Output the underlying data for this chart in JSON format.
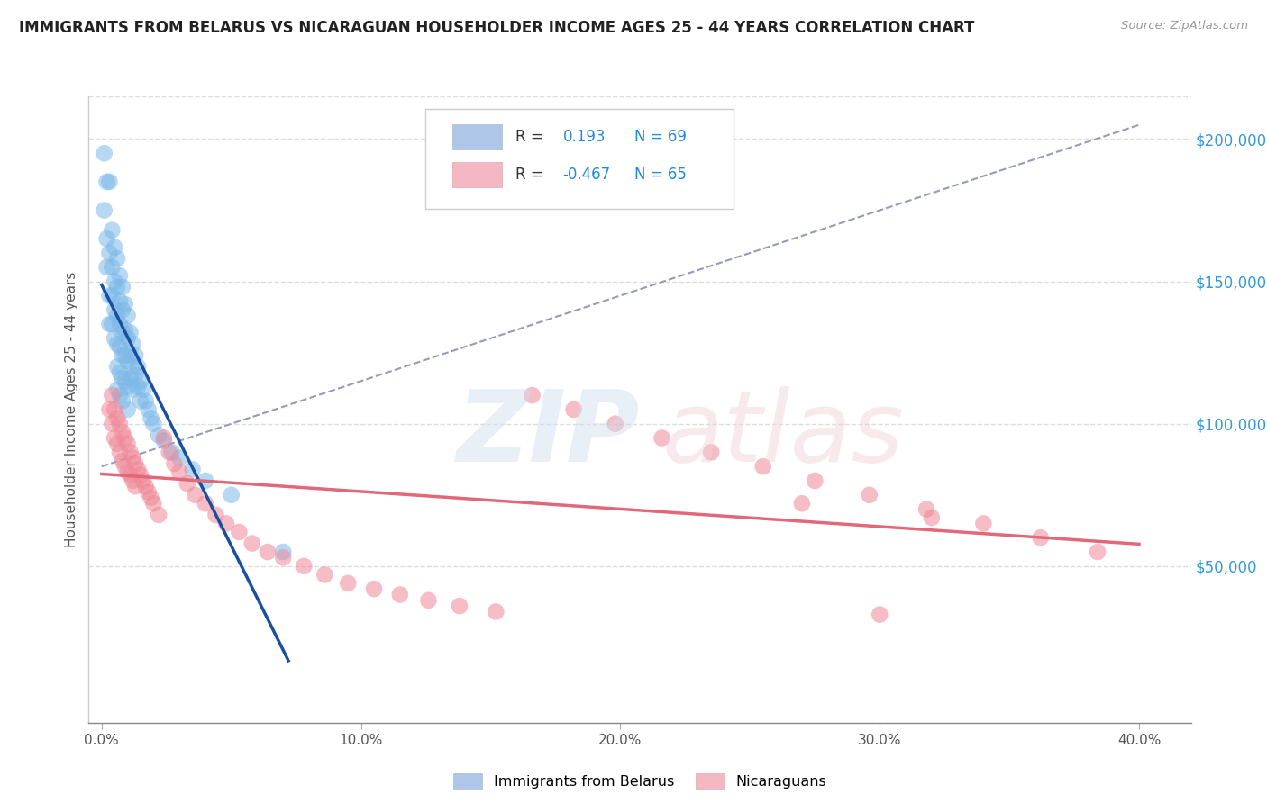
{
  "title": "IMMIGRANTS FROM BELARUS VS NICARAGUAN HOUSEHOLDER INCOME AGES 25 - 44 YEARS CORRELATION CHART",
  "source": "Source: ZipAtlas.com",
  "ylabel": "Householder Income Ages 25 - 44 years",
  "xlabel_ticks": [
    "0.0%",
    "10.0%",
    "20.0%",
    "30.0%",
    "40.0%"
  ],
  "xlabel_vals": [
    0.0,
    0.1,
    0.2,
    0.3,
    0.4
  ],
  "ylabel_ticks": [
    "$50,000",
    "$100,000",
    "$150,000",
    "$200,000"
  ],
  "ylabel_vals": [
    50000,
    100000,
    150000,
    200000
  ],
  "ylim": [
    -5000,
    215000
  ],
  "xlim": [
    -0.005,
    0.42
  ],
  "r_belarus": 0.193,
  "n_belarus": 69,
  "r_nicaraguan": -0.467,
  "n_nicaraguan": 65,
  "color_belarus": "#7bb8e8",
  "color_nicaraguan": "#f08898",
  "color_trendline_belarus": "#1a4fa0",
  "color_trendline_nicaraguan": "#e06878",
  "color_trendline_dashed": "#9999bb",
  "background_color": "#ffffff",
  "grid_color": "#dddddd",
  "title_color": "#222222",
  "legend_patch_belarus": "#aec6e8",
  "legend_patch_nicaraguan": "#f4b8c4",
  "belarus_x": [
    0.001,
    0.001,
    0.002,
    0.002,
    0.002,
    0.003,
    0.003,
    0.003,
    0.003,
    0.004,
    0.004,
    0.004,
    0.004,
    0.005,
    0.005,
    0.005,
    0.005,
    0.006,
    0.006,
    0.006,
    0.006,
    0.006,
    0.006,
    0.007,
    0.007,
    0.007,
    0.007,
    0.007,
    0.007,
    0.008,
    0.008,
    0.008,
    0.008,
    0.008,
    0.008,
    0.009,
    0.009,
    0.009,
    0.009,
    0.01,
    0.01,
    0.01,
    0.01,
    0.01,
    0.011,
    0.011,
    0.011,
    0.012,
    0.012,
    0.012,
    0.013,
    0.013,
    0.014,
    0.014,
    0.015,
    0.015,
    0.016,
    0.017,
    0.018,
    0.019,
    0.02,
    0.022,
    0.024,
    0.027,
    0.03,
    0.035,
    0.04,
    0.05,
    0.07
  ],
  "belarus_y": [
    195000,
    175000,
    185000,
    165000,
    155000,
    185000,
    160000,
    145000,
    135000,
    168000,
    155000,
    145000,
    135000,
    162000,
    150000,
    140000,
    130000,
    158000,
    148000,
    138000,
    128000,
    120000,
    112000,
    152000,
    143000,
    135000,
    127000,
    118000,
    110000,
    148000,
    140000,
    132000,
    124000,
    116000,
    108000,
    142000,
    133000,
    124000,
    115000,
    138000,
    130000,
    122000,
    113000,
    105000,
    132000,
    124000,
    116000,
    128000,
    120000,
    112000,
    124000,
    117000,
    120000,
    113000,
    115000,
    108000,
    112000,
    108000,
    105000,
    102000,
    100000,
    96000,
    94000,
    90000,
    88000,
    84000,
    80000,
    75000,
    55000
  ],
  "nicaraguan_x": [
    0.003,
    0.004,
    0.004,
    0.005,
    0.005,
    0.006,
    0.006,
    0.007,
    0.007,
    0.008,
    0.008,
    0.009,
    0.009,
    0.01,
    0.01,
    0.011,
    0.011,
    0.012,
    0.012,
    0.013,
    0.013,
    0.014,
    0.015,
    0.016,
    0.017,
    0.018,
    0.019,
    0.02,
    0.022,
    0.024,
    0.026,
    0.028,
    0.03,
    0.033,
    0.036,
    0.04,
    0.044,
    0.048,
    0.053,
    0.058,
    0.064,
    0.07,
    0.078,
    0.086,
    0.095,
    0.105,
    0.115,
    0.126,
    0.138,
    0.152,
    0.166,
    0.182,
    0.198,
    0.216,
    0.235,
    0.255,
    0.275,
    0.296,
    0.318,
    0.34,
    0.362,
    0.384,
    0.3,
    0.27,
    0.32
  ],
  "nicaraguan_y": [
    105000,
    110000,
    100000,
    105000,
    95000,
    102000,
    93000,
    100000,
    90000,
    97000,
    87000,
    95000,
    85000,
    93000,
    83000,
    90000,
    82000,
    88000,
    80000,
    86000,
    78000,
    84000,
    82000,
    80000,
    78000,
    76000,
    74000,
    72000,
    68000,
    95000,
    90000,
    86000,
    83000,
    79000,
    75000,
    72000,
    68000,
    65000,
    62000,
    58000,
    55000,
    53000,
    50000,
    47000,
    44000,
    42000,
    40000,
    38000,
    36000,
    34000,
    110000,
    105000,
    100000,
    95000,
    90000,
    85000,
    80000,
    75000,
    70000,
    65000,
    60000,
    55000,
    33000,
    72000,
    67000
  ]
}
